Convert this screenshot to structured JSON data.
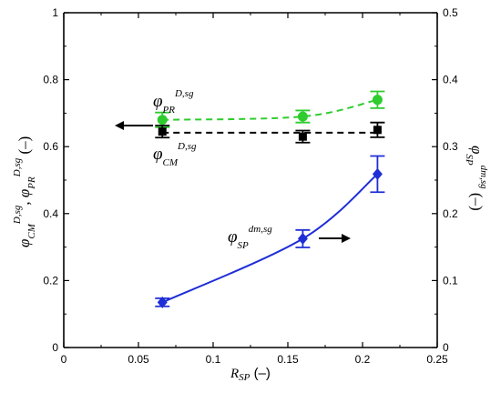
{
  "chart_data": {
    "type": "line",
    "xlabel": "R_SP (–)",
    "ylabel_left": "φ_CM^{D,sg}, φ_PR^{D,sg} (–)",
    "ylabel_right": "φ_SP^{dm,sg} (–)",
    "xlim": [
      0,
      0.25
    ],
    "ylim_left": [
      0,
      1
    ],
    "ylim_right": [
      0,
      0.5
    ],
    "x_ticks": [
      "0",
      "0.05",
      "0.1",
      "0.15",
      "0.2",
      "0.25"
    ],
    "y_left_ticks": [
      "0",
      "0.2",
      "0.4",
      "0.6",
      "0.8",
      "1"
    ],
    "y_right_ticks": [
      "0",
      "0.1",
      "0.2",
      "0.3",
      "0.4",
      "0.5"
    ],
    "grid": false,
    "series": [
      {
        "name": "φ_PR^{D,sg}",
        "axis": "left",
        "color": "#2ecc2e",
        "marker": "circle",
        "line": "dashed",
        "x": [
          0.066,
          0.16,
          0.21
        ],
        "y": [
          0.68,
          0.69,
          0.74
        ],
        "err": [
          0.022,
          0.018,
          0.025
        ]
      },
      {
        "name": "φ_CM^{D,sg}",
        "axis": "left",
        "color": "#000000",
        "marker": "square",
        "line": "dashed",
        "x": [
          0.066,
          0.16,
          0.21
        ],
        "y": [
          0.645,
          0.63,
          0.65
        ],
        "err": [
          0.018,
          0.018,
          0.022
        ]
      },
      {
        "name": "φ_SP^{dm,sg}",
        "axis": "right",
        "color": "#1f2ed6",
        "marker": "diamond",
        "line": "solid",
        "x": [
          0.066,
          0.16,
          0.21
        ],
        "y": [
          0.0675,
          0.1625,
          0.259
        ],
        "err": [
          0.006,
          0.013,
          0.027
        ]
      }
    ],
    "annotations": [
      {
        "target": "left axis",
        "arrow": "left"
      },
      {
        "target": "right axis",
        "arrow": "right"
      }
    ]
  },
  "labels": {
    "phi": "φ",
    "pr_sub": "PR",
    "cm_sub": "CM",
    "sp_sub": "SP",
    "d_sup": "D,sg",
    "dm_sup": "dm,sg",
    "comma": ", ",
    "unit": "(–)",
    "r": "R",
    "r_sub": "SP",
    "r_unit": " (–)"
  }
}
